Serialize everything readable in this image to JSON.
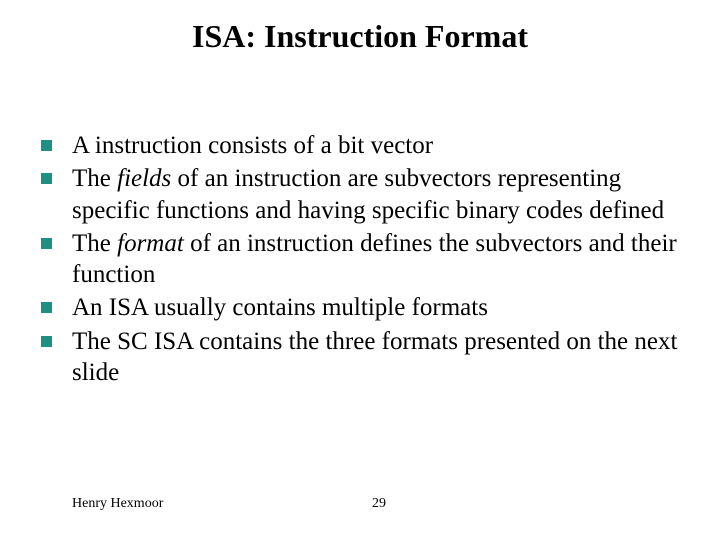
{
  "colors": {
    "background": "#ffffff",
    "text": "#000000",
    "bullet": "#1f8f83"
  },
  "typography": {
    "title_fontsize": 32,
    "body_fontsize": 25,
    "footer_fontsize": 14,
    "font_family": "Times New Roman"
  },
  "title": "ISA: Instruction Format",
  "bullets": {
    "b0": "A instruction consists of a bit vector",
    "b1_pre": "The ",
    "b1_em": "fields",
    "b1_post": " of an instruction are subvectors representing specific functions and having specific binary codes defined",
    "b2_pre": "The ",
    "b2_em": "format",
    "b2_post": " of an instruction defines the subvectors and their function",
    "b3": "An ISA usually contains multiple formats",
    "b4": "The SC ISA contains the three formats presented on the next slide"
  },
  "footer": {
    "author": "Henry Hexmoor",
    "page": "29"
  }
}
